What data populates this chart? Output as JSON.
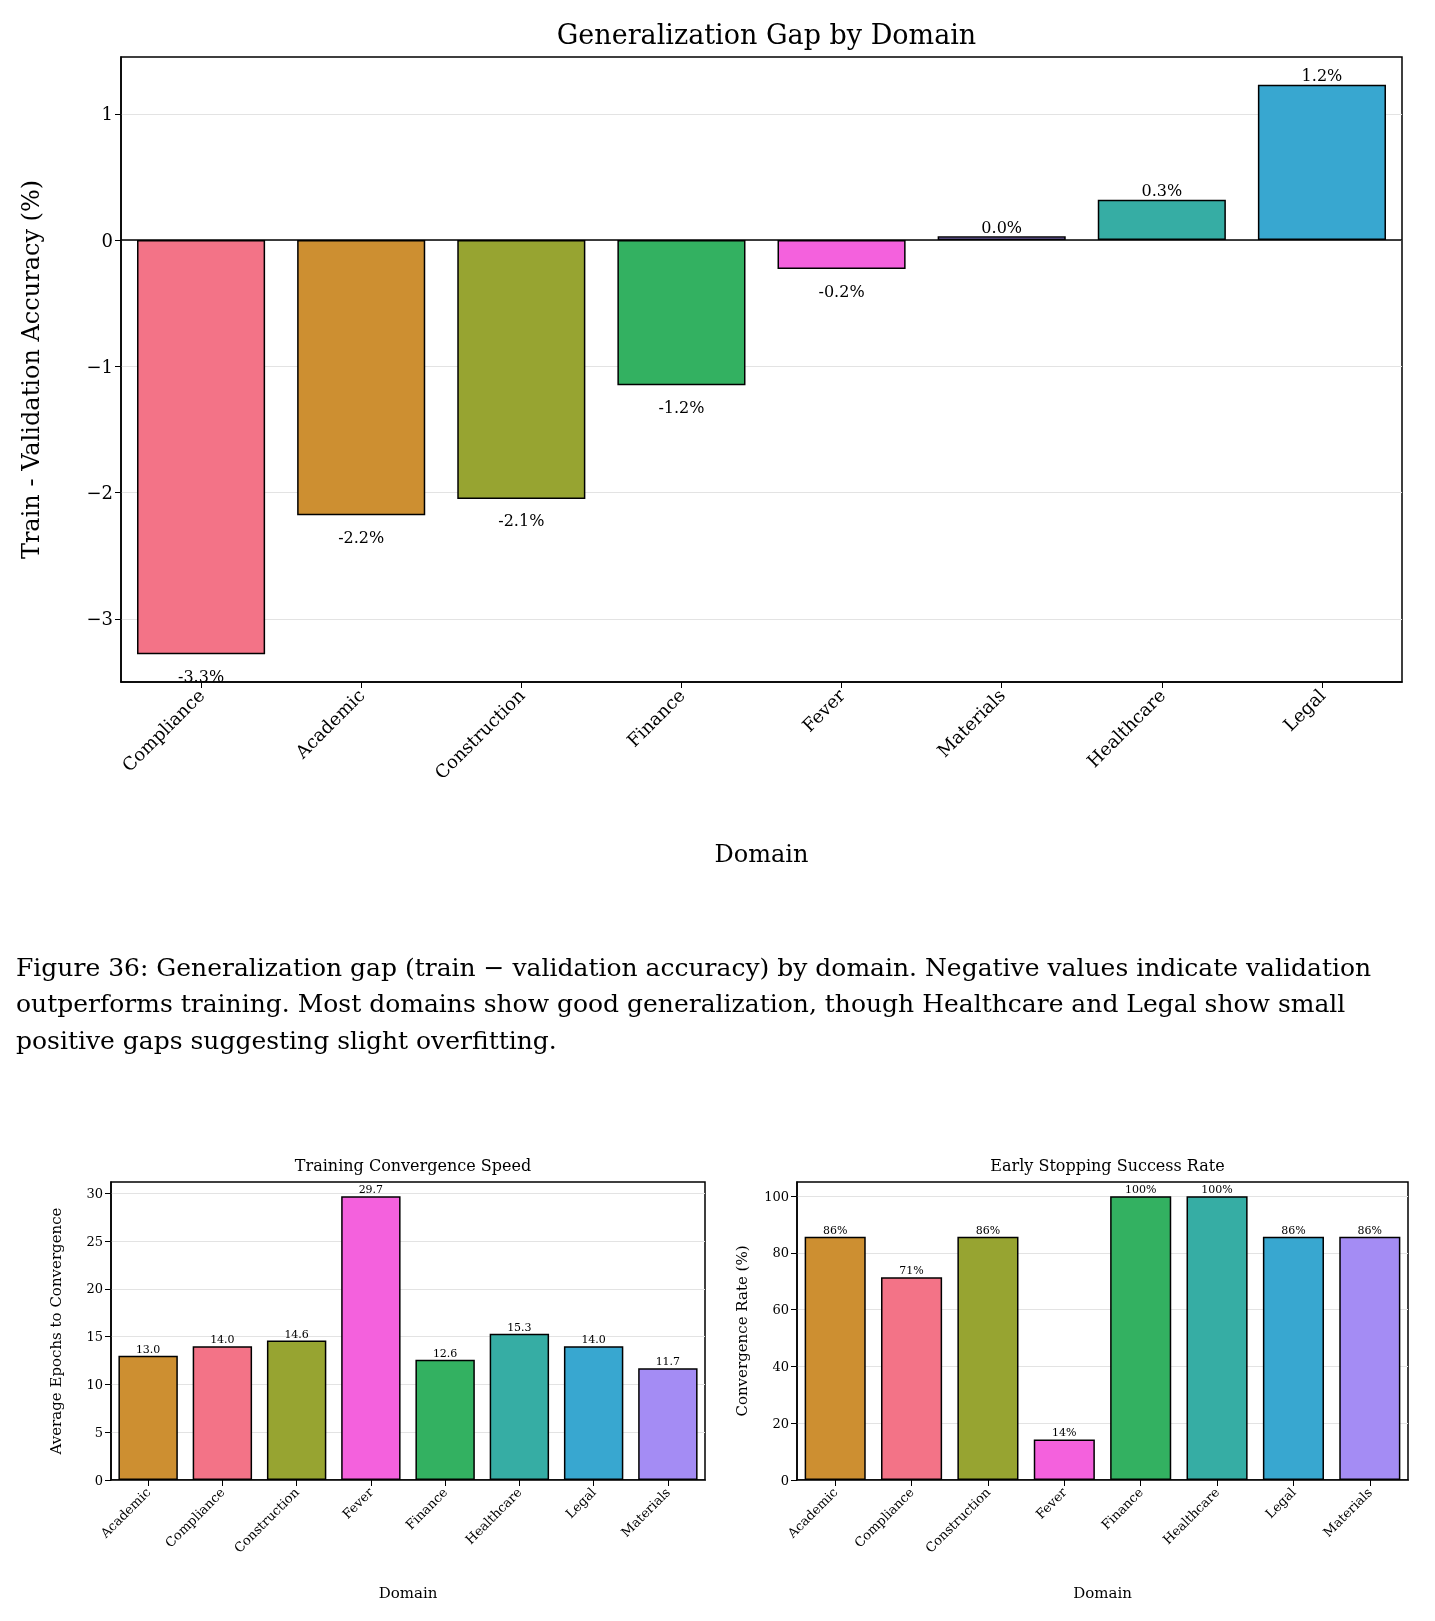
{
  "chart_data": [
    {
      "type": "bar",
      "title": "Generalization Gap by Domain",
      "xlabel": "Domain",
      "ylabel": "Train - Validation Accuracy (%)",
      "categories": [
        "Compliance",
        "Academic",
        "Construction",
        "Finance",
        "Fever",
        "Materials",
        "Healthcare",
        "Legal"
      ],
      "values": [
        -3.28,
        -2.18,
        -2.05,
        -1.15,
        -0.23,
        0.03,
        0.32,
        1.23
      ],
      "value_labels": [
        "-3.3%",
        "-2.2%",
        "-2.1%",
        "-1.2%",
        "-0.2%",
        "0.0%",
        "0.3%",
        "1.2%"
      ],
      "colors": [
        "#f37387",
        "#cd8f31",
        "#97a431",
        "#33b161",
        "#f461dd",
        "#a48cf4",
        "#36ada4",
        "#38a7d0"
      ],
      "ylim": [
        -3.5,
        1.45
      ],
      "yticks": [
        {
          "value": -3,
          "label": "−3"
        },
        {
          "value": -2,
          "label": "−2"
        },
        {
          "value": -1,
          "label": "−1"
        },
        0,
        1
      ],
      "grid": "y",
      "ref_lines": [
        {
          "axis": "y",
          "value": 0,
          "color": "#000000"
        }
      ],
      "annotations": [
        "Figure 36: Generalization gap (train − validation accuracy) by domain. Negative values indicate validation outperforms training. Most domains show good generalization, though Healthcare and Legal show small positive gaps suggesting slight overfitting."
      ]
    },
    {
      "type": "bar",
      "title": "Training Convergence Speed",
      "xlabel": "Domain",
      "ylabel": "Average Epochs to Convergence",
      "categories": [
        "Academic",
        "Compliance",
        "Construction",
        "Fever",
        "Finance",
        "Healthcare",
        "Legal",
        "Materials"
      ],
      "values": [
        13.0,
        14.0,
        14.6,
        29.7,
        12.6,
        15.3,
        14.0,
        11.7
      ],
      "value_labels": [
        "13.0",
        "14.0",
        "14.6",
        "29.7",
        "12.6",
        "15.3",
        "14.0",
        "11.7"
      ],
      "colors": [
        "#cd8f31",
        "#f37387",
        "#97a431",
        "#f461dd",
        "#33b161",
        "#36ada4",
        "#38a7d0",
        "#a48cf4"
      ],
      "ylim": [
        0,
        31.2
      ],
      "yticks": [
        0,
        5,
        10,
        15,
        20,
        25,
        30
      ],
      "grid": "y"
    },
    {
      "type": "bar",
      "title": "Early Stopping Success Rate",
      "xlabel": "Domain",
      "ylabel": "Convergence Rate (%)",
      "categories": [
        "Academic",
        "Compliance",
        "Construction",
        "Fever",
        "Finance",
        "Healthcare",
        "Legal",
        "Materials"
      ],
      "values": [
        85.7,
        71.4,
        85.7,
        14.3,
        100,
        100,
        85.7,
        85.7
      ],
      "value_labels": [
        "86%",
        "71%",
        "86%",
        "14%",
        "100%",
        "100%",
        "86%",
        "86%"
      ],
      "colors": [
        "#cd8f31",
        "#f37387",
        "#97a431",
        "#f461dd",
        "#33b161",
        "#36ada4",
        "#38a7d0",
        "#a48cf4"
      ],
      "ylim": [
        0,
        105
      ],
      "yticks": [
        0,
        20,
        40,
        60,
        80,
        100
      ],
      "grid": "y"
    }
  ]
}
